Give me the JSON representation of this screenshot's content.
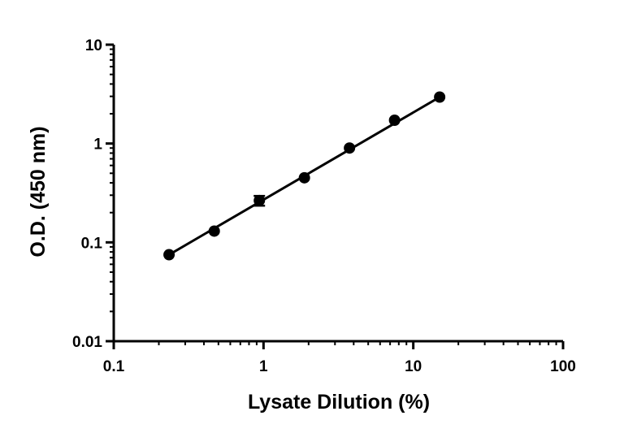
{
  "chart_data": {
    "type": "scatter",
    "title": "",
    "xlabel": "Lysate Dilution (%)",
    "ylabel": "O.D. (450 nm)",
    "x_scale": "log",
    "y_scale": "log",
    "xlim": [
      0.1,
      100
    ],
    "ylim": [
      0.01,
      10
    ],
    "x_ticks": [
      0.1,
      1,
      10,
      100
    ],
    "x_tick_labels": [
      "0.1",
      "1",
      "10",
      "100"
    ],
    "y_ticks": [
      0.01,
      0.1,
      1,
      10
    ],
    "y_tick_labels": [
      "0.01",
      "0.1",
      "1",
      "10"
    ],
    "grid": false,
    "legend": "none",
    "series": [
      {
        "x": [
          0.234,
          0.469,
          0.938,
          1.875,
          3.75,
          7.5,
          15
        ],
        "y": [
          0.075,
          0.13,
          0.265,
          0.45,
          0.9,
          1.72,
          2.95
        ],
        "y_error": [
          0,
          0,
          0.03,
          0,
          0,
          0,
          0
        ]
      }
    ],
    "fit_line": {
      "x_range": [
        0.234,
        15
      ],
      "y_range": [
        0.075,
        2.95
      ]
    },
    "colors": {
      "marker": "#000000",
      "axes": "#000000"
    }
  }
}
